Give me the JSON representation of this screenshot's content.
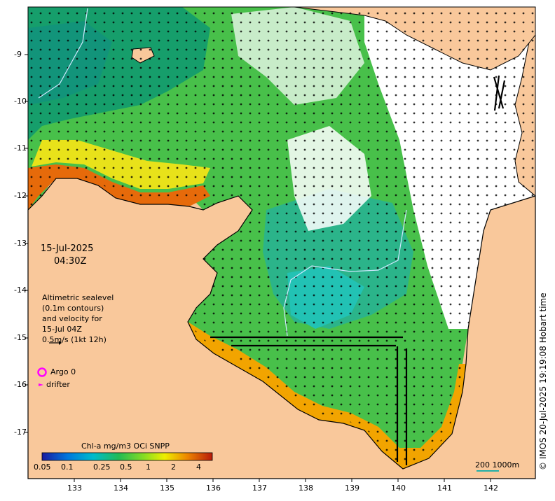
{
  "map": {
    "date": "15-Jul-2025",
    "time": "04:30Z",
    "legend": {
      "line1": "Altimetric sealevel",
      "line2": "(0.1m contours)",
      "line3": "and velocity for",
      "line4": "15-Jul 04Z",
      "line5": "0.5m/s (1kt 12h)"
    },
    "argo_label": "Argo 0",
    "drifter_label": "drifter",
    "colorbar_title": "Chl-a mg/m3 OCi SNPP",
    "colorbar_ticks": [
      "0.05",
      "0.1",
      "0.25",
      "0.5",
      "1",
      "2",
      "4"
    ],
    "x_ticks": [
      "133",
      "134",
      "135",
      "136",
      "137",
      "138",
      "139",
      "140",
      "141",
      "142"
    ],
    "y_ticks": [
      "-9",
      "-10",
      "-11",
      "-12",
      "-13",
      "-14",
      "-15",
      "-16",
      "-17"
    ],
    "scale_label": "200  1000m",
    "credit": "© IMOS 20-Jul-2025 19:19:08 Hobart time",
    "colors": {
      "land": "#f9c89b",
      "coast": "#000000",
      "argo": "#ff00ff",
      "contour": "#cfe8ff"
    }
  }
}
